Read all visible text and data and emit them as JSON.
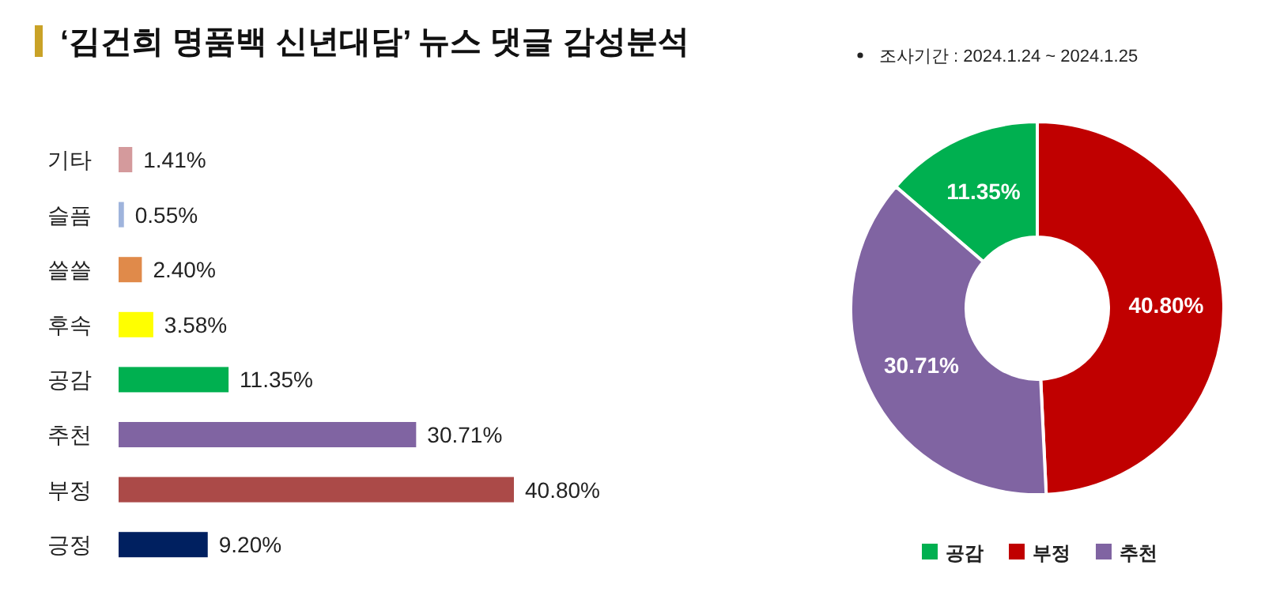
{
  "chart_data": [
    {
      "type": "bar",
      "orientation": "horizontal",
      "title": "‘김건희 명품백 신년대담’ 뉴스 댓글 감성분석",
      "categories": [
        "기타",
        "슬픔",
        "쓸쓸",
        "후속",
        "공감",
        "추천",
        "부정",
        "긍정"
      ],
      "values": [
        1.41,
        0.55,
        2.4,
        3.58,
        11.35,
        30.71,
        40.8,
        9.2
      ],
      "colors": [
        "#d49a9c",
        "#9fb4dc",
        "#e08a4a",
        "#ffff00",
        "#00b050",
        "#8064a2",
        "#ab4a48",
        "#002060"
      ],
      "value_labels": [
        "1.41%",
        "0.55%",
        "2.40%",
        "3.58%",
        "11.35%",
        "30.71%",
        "40.80%",
        "9.20%"
      ]
    },
    {
      "type": "donut",
      "annotations": [
        "조사기간 : 2024.1.24 ~ 2024.1.25"
      ],
      "categories": [
        "공감",
        "부정",
        "추천"
      ],
      "values": [
        11.35,
        40.8,
        30.71
      ],
      "colors": [
        "#00b050",
        "#c00000",
        "#8064a2"
      ],
      "value_labels": [
        "11.35%",
        "40.80%",
        "30.71%"
      ],
      "legend": "bottom"
    }
  ]
}
